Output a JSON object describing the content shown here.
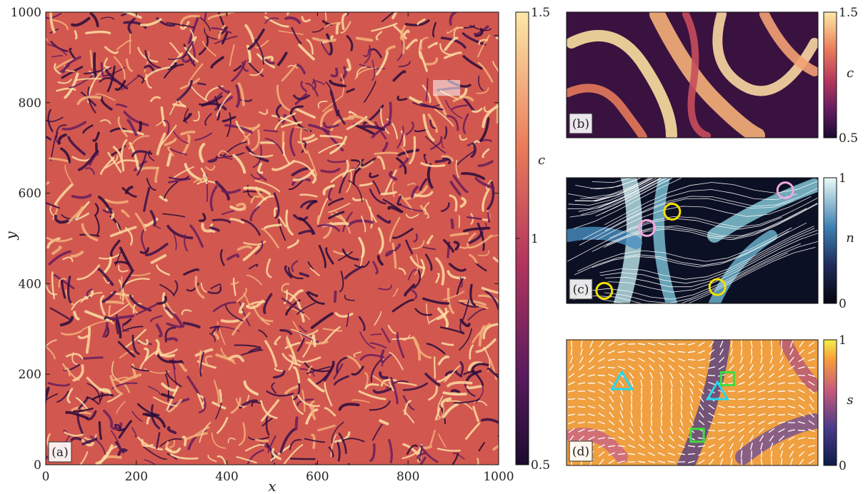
{
  "chart_data": [
    {
      "panel": "(a)",
      "type": "heatmap",
      "xlabel": "x",
      "ylabel": "y",
      "xlim": [
        0,
        1000
      ],
      "ylim": [
        0,
        1000
      ],
      "xticks": [
        "0",
        "200",
        "400",
        "600",
        "800",
        "1000"
      ],
      "yticks": [
        "0",
        "200",
        "400",
        "600",
        "800",
        "1000"
      ],
      "colorbar": {
        "label": "c",
        "min": 0.5,
        "max": 1.5,
        "ticks": [
          "0.5",
          "1",
          "1.5"
        ],
        "colormap": "magma-like"
      },
      "highlight_region": {
        "x": [
          855,
          915
        ],
        "y": [
          815,
          850
        ]
      }
    },
    {
      "panel": "(b)",
      "type": "heatmap",
      "colorbar": {
        "label": "c",
        "min": 0.5,
        "max": 1.5,
        "ticks": [
          "0.5",
          "1.5"
        ],
        "colormap": "magma-like"
      }
    },
    {
      "panel": "(c)",
      "type": "heatmap",
      "overlay": "streamlines",
      "colorbar": {
        "label": "n",
        "min": 0,
        "max": 1,
        "ticks": [
          "0",
          "1"
        ],
        "colormap": "ice"
      },
      "markers": [
        {
          "shape": "circle",
          "color": "#f0a8e0",
          "u": 0.32,
          "v": 0.6
        },
        {
          "shape": "circle",
          "color": "#f0a8e0",
          "u": 0.87,
          "v": 0.9
        },
        {
          "shape": "circle",
          "color": "#f5e100",
          "u": 0.42,
          "v": 0.73
        },
        {
          "shape": "circle",
          "color": "#f5e100",
          "u": 0.15,
          "v": 0.1
        },
        {
          "shape": "circle",
          "color": "#f5e100",
          "u": 0.6,
          "v": 0.13
        }
      ]
    },
    {
      "panel": "(d)",
      "type": "heatmap",
      "overlay": "director-field",
      "colorbar": {
        "label": "s",
        "min": 0,
        "max": 1,
        "ticks": [
          "0",
          "1"
        ],
        "colormap": "plasma-like"
      },
      "markers": [
        {
          "shape": "triangle",
          "color": "#26d7f0",
          "u": 0.22,
          "v": 0.67
        },
        {
          "shape": "triangle",
          "color": "#26d7f0",
          "u": 0.6,
          "v": 0.59
        },
        {
          "shape": "square",
          "color": "#3ddc3d",
          "u": 0.64,
          "v": 0.69
        },
        {
          "shape": "square",
          "color": "#3ddc3d",
          "u": 0.52,
          "v": 0.24
        }
      ]
    }
  ],
  "colors": {
    "frame": "#111111",
    "magma_dark": "#2a0c3a",
    "magma_mid": "#c8444f",
    "magma_light": "#fde4a3"
  }
}
